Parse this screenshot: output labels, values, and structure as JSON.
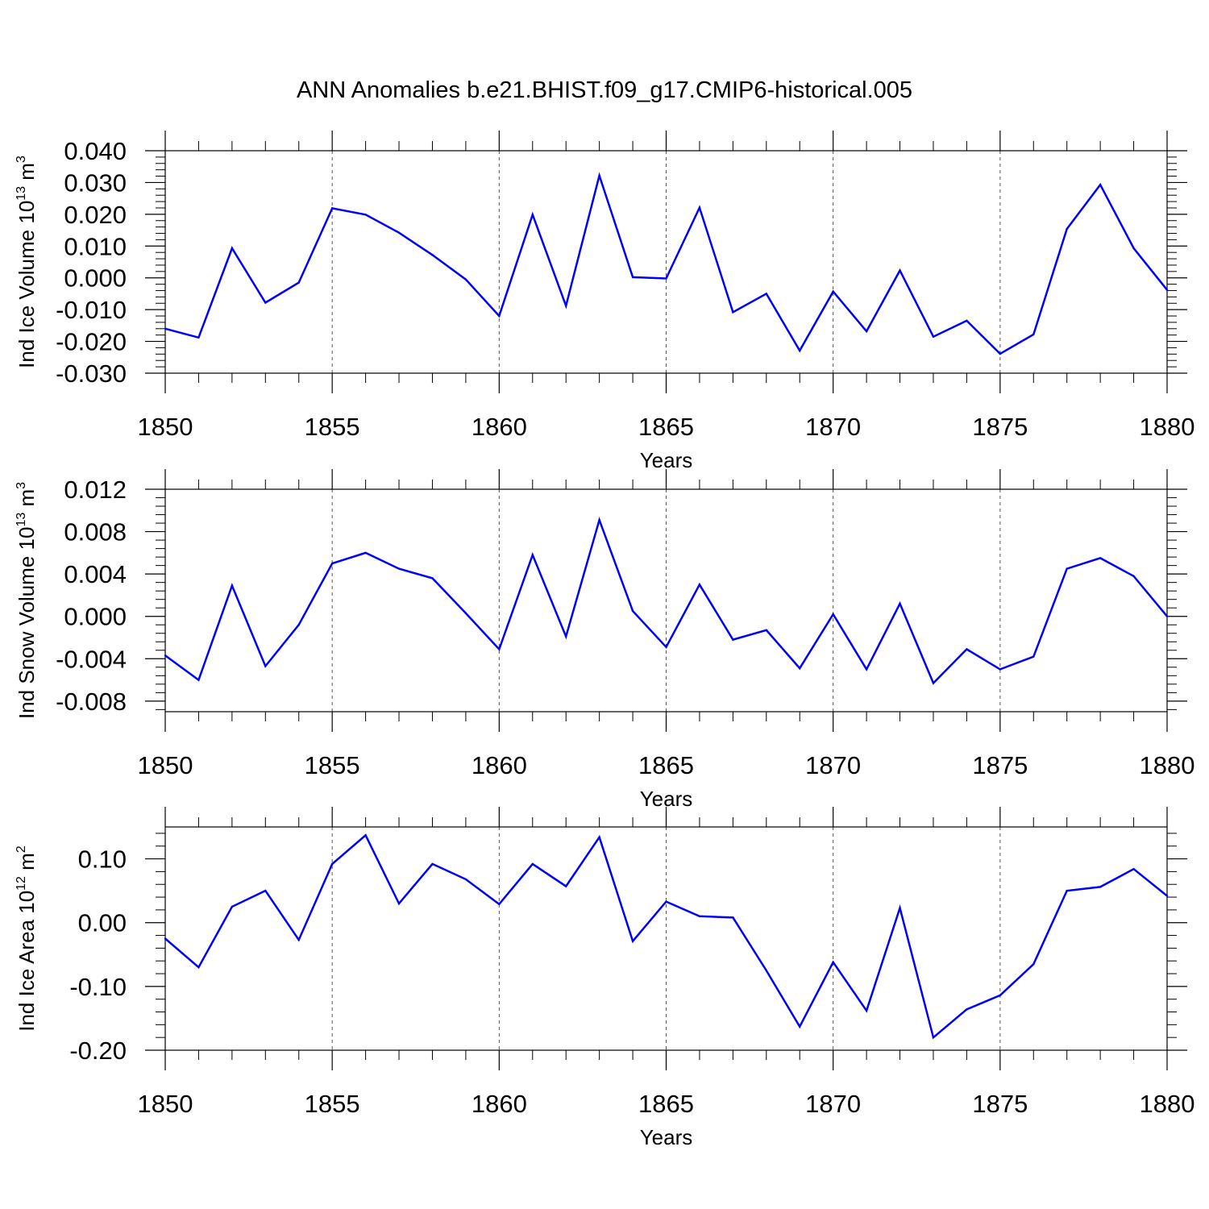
{
  "title": "ANN Anomalies b.e21.BHIST.f09_g17.CMIP6-historical.005",
  "chart_data": [
    {
      "type": "line",
      "title": "",
      "xlabel": "Years",
      "ylabel": "Ind Ice Volume 10^13 m^3",
      "ylabel_parts": [
        "Ind Ice Volume 10",
        "13",
        " m",
        "3"
      ],
      "xlim": [
        1850,
        1880
      ],
      "ylim": [
        -0.03,
        0.04
      ],
      "x_ticks": [
        1850,
        1855,
        1860,
        1865,
        1870,
        1875,
        1880
      ],
      "x_tick_labels": [
        "1850",
        "1855",
        "1860",
        "1865",
        "1870",
        "1875",
        "1880"
      ],
      "y_ticks": [
        0.04,
        0.03,
        0.02,
        0.01,
        0.0,
        -0.01,
        -0.02,
        -0.03
      ],
      "y_tick_labels": [
        "0.040",
        "0.030",
        "0.020",
        "0.010",
        "0.000",
        "-0.010",
        "-0.020",
        "-0.030"
      ],
      "grid": "dashed vertical at major x ticks",
      "line_color": "#0000ff",
      "x": [
        1850,
        1851,
        1852,
        1853,
        1854,
        1855,
        1856,
        1857,
        1858,
        1859,
        1860,
        1861,
        1862,
        1863,
        1864,
        1865,
        1866,
        1867,
        1868,
        1869,
        1870,
        1871,
        1872,
        1873,
        1874,
        1875,
        1876,
        1877,
        1878,
        1879,
        1880
      ],
      "values": [
        -0.016,
        -0.0188,
        0.0093,
        -0.0078,
        -0.0015,
        0.0219,
        0.0199,
        0.0142,
        0.0072,
        -0.0005,
        -0.012,
        0.0199,
        -0.0088,
        0.0322,
        0.0002,
        -0.0002,
        0.0221,
        -0.0108,
        -0.005,
        -0.0229,
        -0.0043,
        -0.0168,
        0.0023,
        -0.0185,
        -0.0135,
        -0.0239,
        -0.0178,
        0.0154,
        0.0293,
        0.0093,
        -0.0038
      ]
    },
    {
      "type": "line",
      "title": "",
      "xlabel": "Years",
      "ylabel": "Ind Snow Volume 10^13 m^3",
      "ylabel_parts": [
        "Ind Snow Volume 10",
        "13",
        " m",
        "3"
      ],
      "xlim": [
        1850,
        1880
      ],
      "ylim": [
        -0.009,
        0.012
      ],
      "x_ticks": [
        1850,
        1855,
        1860,
        1865,
        1870,
        1875,
        1880
      ],
      "x_tick_labels": [
        "1850",
        "1855",
        "1860",
        "1865",
        "1870",
        "1875",
        "1880"
      ],
      "y_ticks": [
        0.012,
        0.008,
        0.004,
        0.0,
        -0.004,
        -0.008
      ],
      "y_tick_labels": [
        "0.012",
        "0.008",
        "0.004",
        "0.000",
        "-0.004",
        "-0.008"
      ],
      "grid": "dashed vertical at major x ticks",
      "line_color": "#0000ff",
      "x": [
        1850,
        1851,
        1852,
        1853,
        1854,
        1855,
        1856,
        1857,
        1858,
        1859,
        1860,
        1861,
        1862,
        1863,
        1864,
        1865,
        1866,
        1867,
        1868,
        1869,
        1870,
        1871,
        1872,
        1873,
        1874,
        1875,
        1876,
        1877,
        1878,
        1879,
        1880
      ],
      "values": [
        -0.0037,
        -0.006,
        0.0029,
        -0.0047,
        -0.0008,
        0.005,
        0.006,
        0.0045,
        0.0036,
        0.0003,
        -0.0031,
        0.0058,
        -0.0019,
        0.0091,
        0.0005,
        -0.0029,
        0.003,
        -0.0022,
        -0.0013,
        -0.0049,
        0.0002,
        -0.005,
        0.0012,
        -0.0063,
        -0.0031,
        -0.005,
        -0.0038,
        0.0045,
        0.0055,
        0.0038,
        0.0
      ]
    },
    {
      "type": "line",
      "title": "",
      "xlabel": "Years",
      "ylabel": "Ind Ice Area 10^12 m^2",
      "ylabel_parts": [
        "Ind Ice Area 10",
        "12",
        " m",
        "2"
      ],
      "xlim": [
        1850,
        1880
      ],
      "ylim": [
        -0.2,
        0.15
      ],
      "x_ticks": [
        1850,
        1855,
        1860,
        1865,
        1870,
        1875,
        1880
      ],
      "x_tick_labels": [
        "1850",
        "1855",
        "1860",
        "1865",
        "1870",
        "1875",
        "1880"
      ],
      "y_ticks": [
        0.1,
        0.0,
        -0.1,
        -0.2
      ],
      "y_tick_labels": [
        "0.10",
        "0.00",
        "-0.10",
        "-0.20"
      ],
      "grid": "dashed vertical at major x ticks",
      "line_color": "#0000ff",
      "x": [
        1850,
        1851,
        1852,
        1853,
        1854,
        1855,
        1856,
        1857,
        1858,
        1859,
        1860,
        1861,
        1862,
        1863,
        1864,
        1865,
        1866,
        1867,
        1868,
        1869,
        1870,
        1871,
        1872,
        1873,
        1874,
        1875,
        1876,
        1877,
        1878,
        1879,
        1880
      ],
      "values": [
        -0.025,
        -0.07,
        0.025,
        0.05,
        -0.027,
        0.092,
        0.137,
        0.03,
        0.092,
        0.068,
        0.029,
        0.092,
        0.057,
        0.134,
        -0.029,
        0.033,
        0.01,
        0.008,
        -0.075,
        -0.163,
        -0.062,
        -0.138,
        0.023,
        -0.18,
        -0.136,
        -0.114,
        -0.065,
        0.05,
        0.056,
        0.084,
        0.042
      ]
    }
  ]
}
